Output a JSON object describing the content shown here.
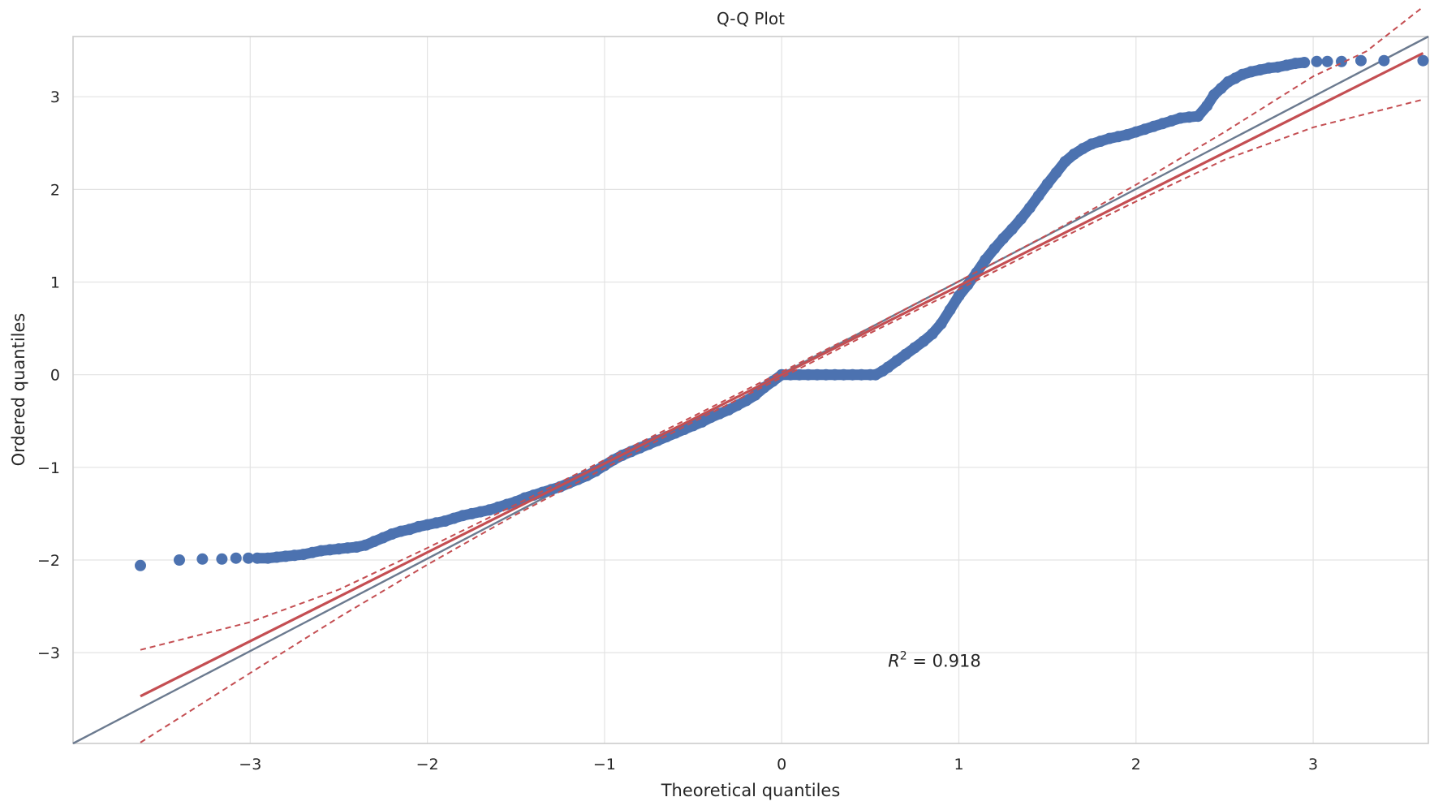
{
  "chart_data": {
    "type": "scatter",
    "title": "Q-Q Plot",
    "xlabel": "Theoretical quantiles",
    "ylabel": "Ordered quantiles",
    "xlim": [
      -4.0,
      3.65
    ],
    "ylim": [
      -3.98,
      3.65
    ],
    "xticks": [
      -3,
      -2,
      -1,
      0,
      1,
      2,
      3
    ],
    "xtick_labels": [
      "−3",
      "−2",
      "−1",
      "0",
      "1",
      "2",
      "3"
    ],
    "yticks": [
      -3,
      -2,
      -1,
      0,
      1,
      2,
      3
    ],
    "ytick_labels": [
      "−3",
      "−2",
      "−1",
      "0",
      "1",
      "2",
      "3"
    ],
    "grid": true,
    "annotation": {
      "symbol": "R",
      "superscript": "2",
      "text": " = 0.918",
      "x": 0.6,
      "y": -3.15
    },
    "colors": {
      "points": "#4c72b0",
      "fit": "#c44e52",
      "reference": "#6b7a8f",
      "grid": "#e3e3e3",
      "spine": "#cccccc"
    },
    "series": [
      {
        "kind": "points",
        "points": [
          [
            -3.62,
            -2.06
          ],
          [
            -3.4,
            -2.0
          ],
          [
            -3.27,
            -1.99
          ],
          [
            -3.16,
            -1.99
          ],
          [
            -3.08,
            -1.98
          ],
          [
            -3.01,
            -1.98
          ],
          [
            -2.96,
            -1.98
          ],
          [
            -2.9,
            -1.98
          ],
          [
            -2.85,
            -1.97
          ],
          [
            -2.8,
            -1.96
          ],
          [
            -2.75,
            -1.95
          ],
          [
            -2.7,
            -1.94
          ],
          [
            -2.65,
            -1.92
          ],
          [
            -2.6,
            -1.9
          ],
          [
            -2.55,
            -1.89
          ],
          [
            -2.5,
            -1.88
          ],
          [
            -2.45,
            -1.87
          ],
          [
            -2.4,
            -1.86
          ],
          [
            -2.35,
            -1.84
          ],
          [
            -2.3,
            -1.8
          ],
          [
            -2.25,
            -1.76
          ],
          [
            -2.2,
            -1.72
          ],
          [
            -2.15,
            -1.69
          ],
          [
            -2.1,
            -1.67
          ],
          [
            -2.05,
            -1.64
          ],
          [
            -2.0,
            -1.62
          ],
          [
            -1.95,
            -1.6
          ],
          [
            -1.9,
            -1.58
          ],
          [
            -1.85,
            -1.55
          ],
          [
            -1.8,
            -1.52
          ],
          [
            -1.75,
            -1.5
          ],
          [
            -1.7,
            -1.48
          ],
          [
            -1.65,
            -1.46
          ],
          [
            -1.6,
            -1.43
          ],
          [
            -1.55,
            -1.4
          ],
          [
            -1.5,
            -1.37
          ],
          [
            -1.45,
            -1.33
          ],
          [
            -1.4,
            -1.3
          ],
          [
            -1.35,
            -1.27
          ],
          [
            -1.3,
            -1.24
          ],
          [
            -1.25,
            -1.21
          ],
          [
            -1.2,
            -1.17
          ],
          [
            -1.15,
            -1.13
          ],
          [
            -1.1,
            -1.09
          ],
          [
            -1.05,
            -1.04
          ],
          [
            -1.0,
            -0.98
          ],
          [
            -0.95,
            -0.92
          ],
          [
            -0.9,
            -0.87
          ],
          [
            -0.85,
            -0.83
          ],
          [
            -0.8,
            -0.79
          ],
          [
            -0.75,
            -0.75
          ],
          [
            -0.7,
            -0.71
          ],
          [
            -0.65,
            -0.67
          ],
          [
            -0.6,
            -0.63
          ],
          [
            -0.55,
            -0.59
          ],
          [
            -0.5,
            -0.55
          ],
          [
            -0.45,
            -0.51
          ],
          [
            -0.4,
            -0.46
          ],
          [
            -0.35,
            -0.42
          ],
          [
            -0.3,
            -0.38
          ],
          [
            -0.25,
            -0.33
          ],
          [
            -0.2,
            -0.28
          ],
          [
            -0.15,
            -0.22
          ],
          [
            -0.1,
            -0.14
          ],
          [
            -0.05,
            -0.07
          ],
          [
            0.0,
            0.0
          ],
          [
            0.05,
            0.0
          ],
          [
            0.1,
            0.0
          ],
          [
            0.15,
            0.0
          ],
          [
            0.2,
            0.0
          ],
          [
            0.25,
            0.0
          ],
          [
            0.3,
            0.0
          ],
          [
            0.35,
            0.0
          ],
          [
            0.4,
            0.0
          ],
          [
            0.45,
            0.0
          ],
          [
            0.5,
            0.0
          ],
          [
            0.53,
            0.0
          ],
          [
            0.57,
            0.04
          ],
          [
            0.6,
            0.08
          ],
          [
            0.65,
            0.15
          ],
          [
            0.7,
            0.22
          ],
          [
            0.75,
            0.29
          ],
          [
            0.8,
            0.36
          ],
          [
            0.85,
            0.44
          ],
          [
            0.9,
            0.55
          ],
          [
            0.95,
            0.7
          ],
          [
            1.0,
            0.85
          ],
          [
            1.05,
            0.97
          ],
          [
            1.1,
            1.1
          ],
          [
            1.15,
            1.24
          ],
          [
            1.2,
            1.36
          ],
          [
            1.25,
            1.47
          ],
          [
            1.3,
            1.57
          ],
          [
            1.35,
            1.68
          ],
          [
            1.4,
            1.8
          ],
          [
            1.45,
            1.93
          ],
          [
            1.5,
            2.06
          ],
          [
            1.55,
            2.18
          ],
          [
            1.6,
            2.3
          ],
          [
            1.65,
            2.38
          ],
          [
            1.7,
            2.44
          ],
          [
            1.75,
            2.49
          ],
          [
            1.8,
            2.52
          ],
          [
            1.85,
            2.55
          ],
          [
            1.9,
            2.57
          ],
          [
            1.95,
            2.59
          ],
          [
            2.0,
            2.62
          ],
          [
            2.05,
            2.65
          ],
          [
            2.1,
            2.68
          ],
          [
            2.15,
            2.71
          ],
          [
            2.2,
            2.74
          ],
          [
            2.25,
            2.77
          ],
          [
            2.3,
            2.78
          ],
          [
            2.35,
            2.79
          ],
          [
            2.4,
            2.9
          ],
          [
            2.44,
            3.02
          ],
          [
            2.48,
            3.09
          ],
          [
            2.52,
            3.16
          ],
          [
            2.56,
            3.2
          ],
          [
            2.6,
            3.24
          ],
          [
            2.65,
            3.27
          ],
          [
            2.7,
            3.29
          ],
          [
            2.75,
            3.31
          ],
          [
            2.8,
            3.32
          ],
          [
            2.85,
            3.34
          ],
          [
            2.9,
            3.36
          ],
          [
            2.95,
            3.37
          ],
          [
            3.02,
            3.38
          ],
          [
            3.08,
            3.38
          ],
          [
            3.16,
            3.38
          ],
          [
            3.27,
            3.39
          ],
          [
            3.4,
            3.39
          ],
          [
            3.62,
            3.39
          ]
        ]
      },
      {
        "kind": "fit_line",
        "points": [
          [
            -3.62,
            -3.47
          ],
          [
            3.62,
            3.47
          ]
        ]
      },
      {
        "kind": "confidence_band_upper",
        "points": [
          [
            -3.62,
            -2.97
          ],
          [
            -3.0,
            -2.67
          ],
          [
            -2.5,
            -2.32
          ],
          [
            -2.0,
            -1.87
          ],
          [
            -1.5,
            -1.4
          ],
          [
            -1.0,
            -0.92
          ],
          [
            -0.5,
            -0.45
          ],
          [
            0.0,
            0.03
          ],
          [
            0.5,
            0.51
          ],
          [
            1.0,
            1.01
          ],
          [
            1.5,
            1.51
          ],
          [
            2.0,
            2.05
          ],
          [
            2.5,
            2.62
          ],
          [
            3.0,
            3.22
          ],
          [
            3.3,
            3.49
          ],
          [
            3.62,
            3.97
          ]
        ]
      },
      {
        "kind": "confidence_band_lower",
        "points": [
          [
            -3.62,
            -3.97
          ],
          [
            -3.0,
            -3.22
          ],
          [
            -2.5,
            -2.62
          ],
          [
            -2.0,
            -2.05
          ],
          [
            -1.5,
            -1.51
          ],
          [
            -1.0,
            -1.01
          ],
          [
            -0.5,
            -0.51
          ],
          [
            0.0,
            -0.03
          ],
          [
            0.5,
            0.45
          ],
          [
            1.0,
            0.92
          ],
          [
            1.5,
            1.4
          ],
          [
            2.0,
            1.87
          ],
          [
            2.5,
            2.32
          ],
          [
            3.0,
            2.67
          ],
          [
            3.62,
            2.97
          ]
        ]
      },
      {
        "kind": "reference_line",
        "points": [
          [
            -4.0,
            -3.98
          ],
          [
            3.65,
            3.65
          ]
        ]
      }
    ]
  }
}
